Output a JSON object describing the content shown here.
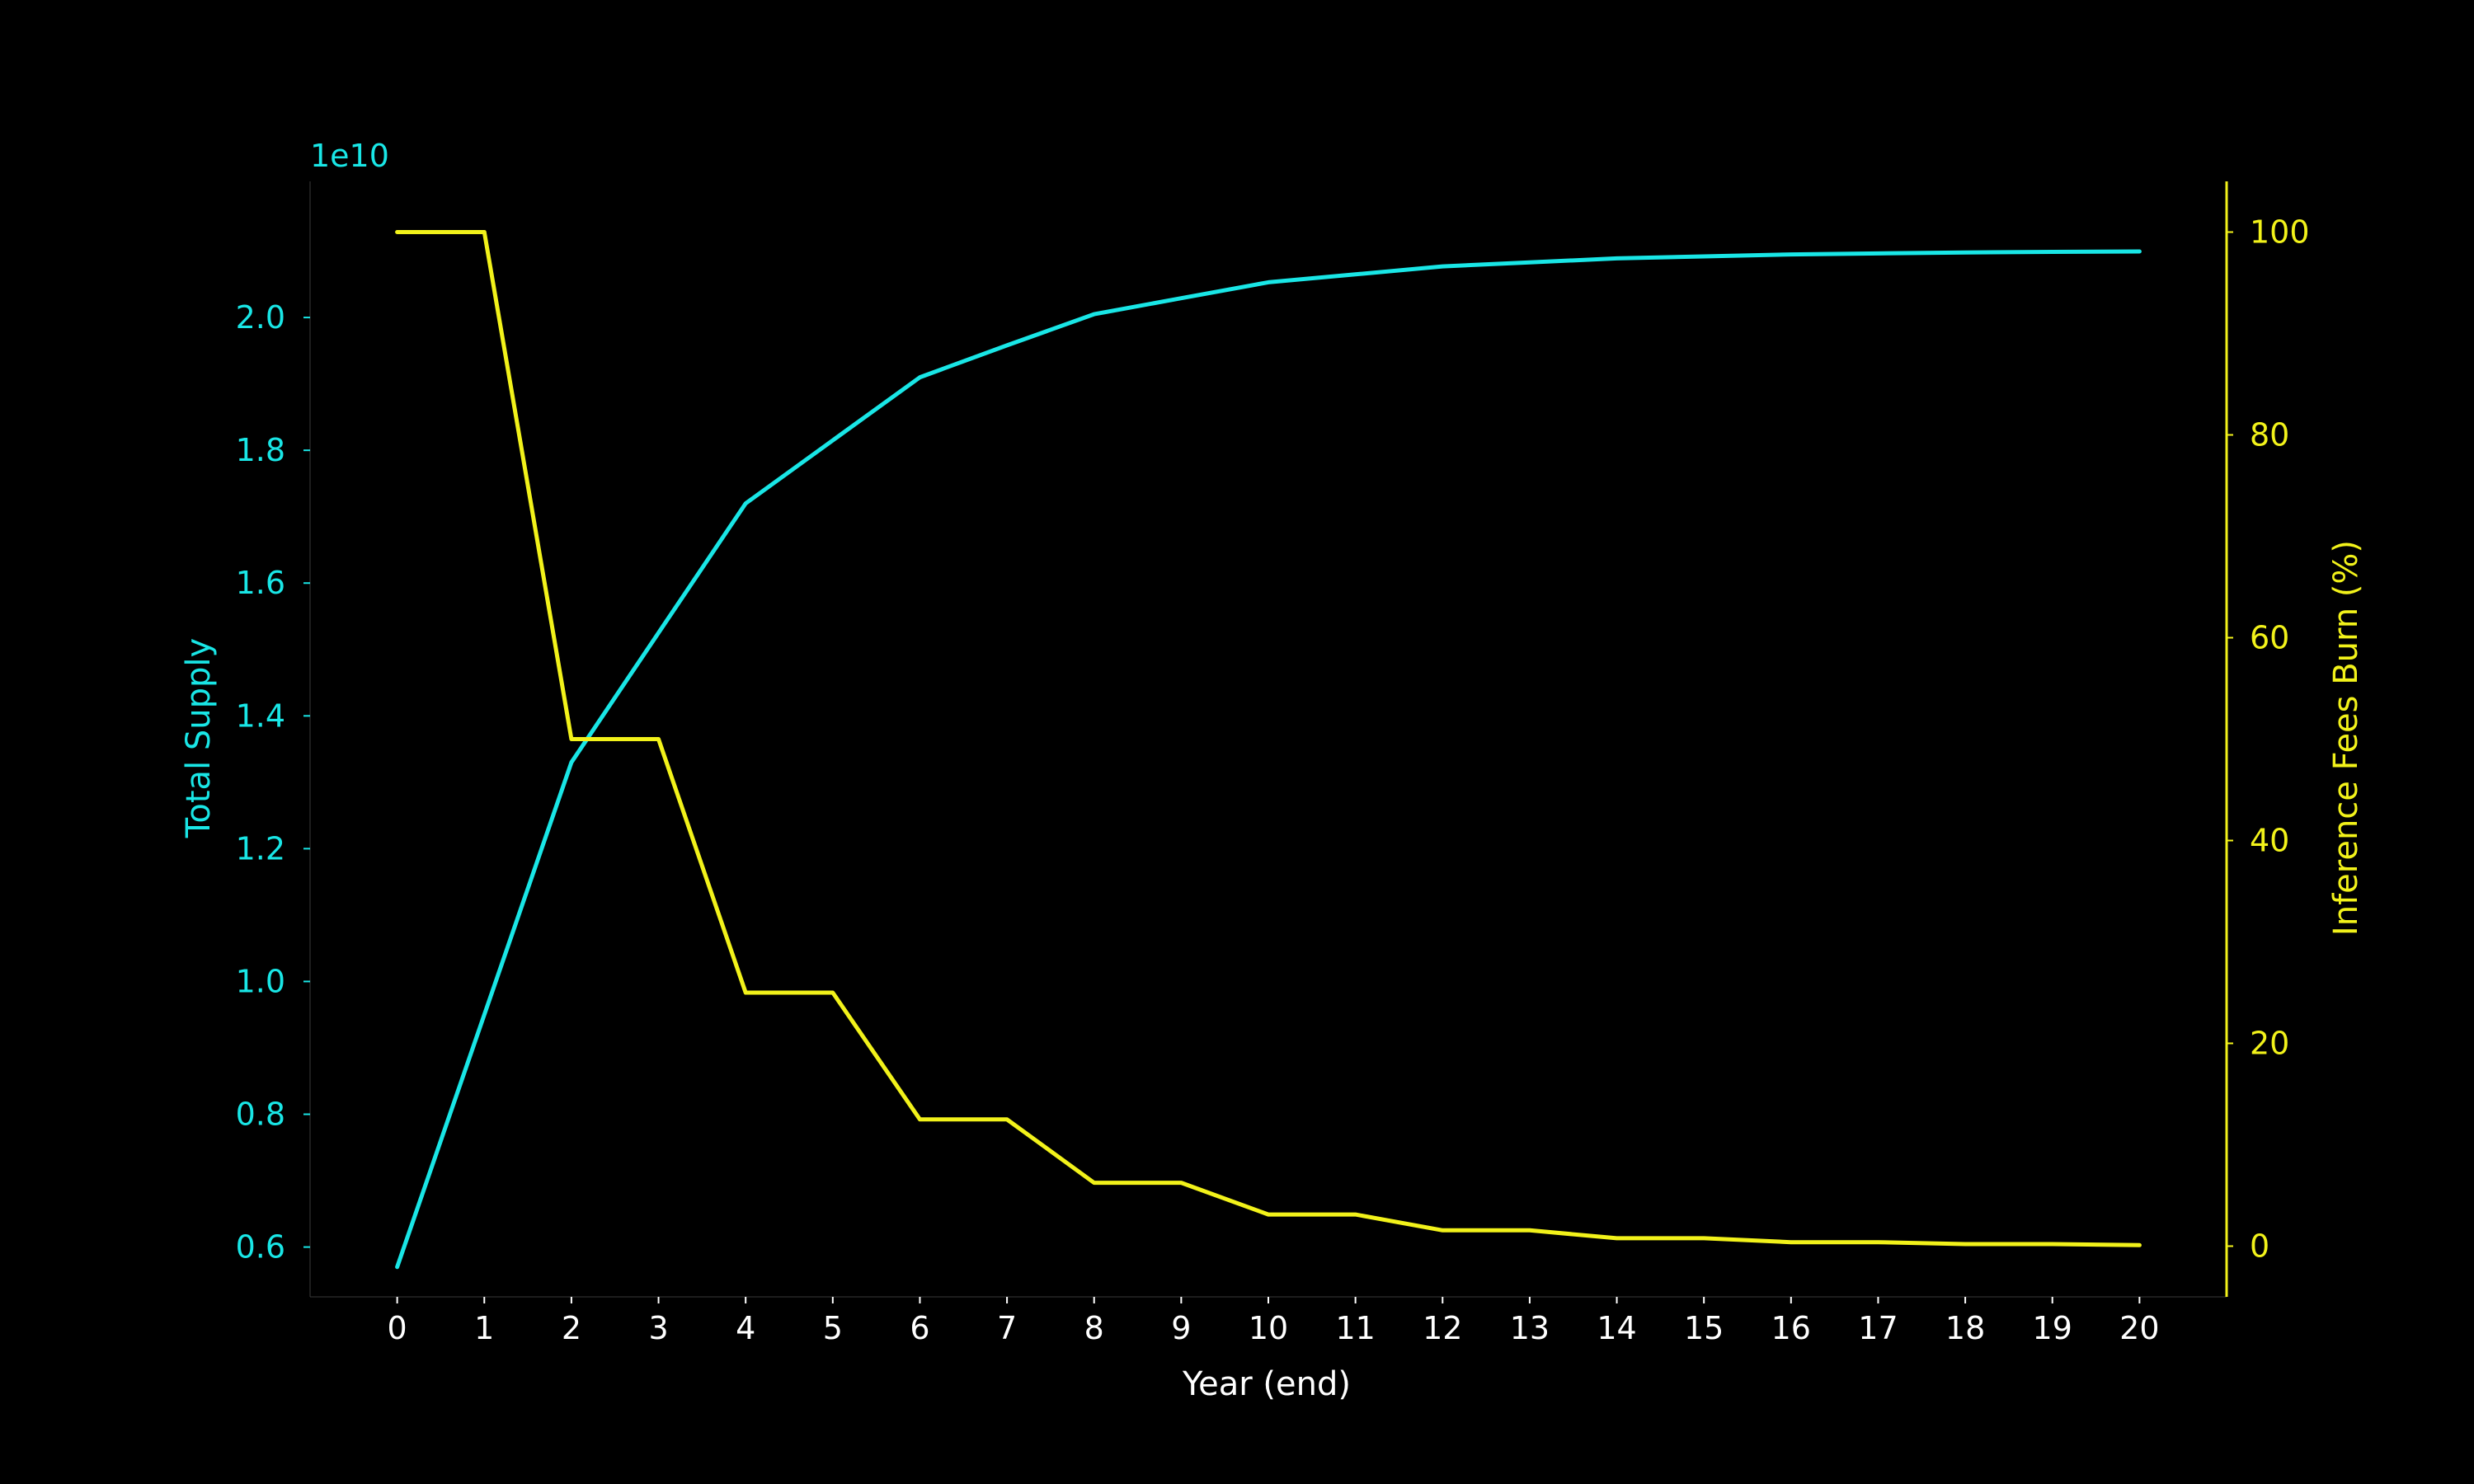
{
  "chart_data": {
    "type": "line",
    "xlabel": "Year (end)",
    "ylabel_left": "Total Supply",
    "ylabel_right": "Inference Fees Burn (%)",
    "left_axis_multiplier": "1e10",
    "x": [
      0,
      1,
      2,
      3,
      4,
      5,
      6,
      7,
      8,
      9,
      10,
      11,
      12,
      13,
      14,
      15,
      16,
      17,
      18,
      19,
      20
    ],
    "x_ticks": [
      "0",
      "1",
      "2",
      "3",
      "4",
      "5",
      "6",
      "7",
      "8",
      "9",
      "10",
      "11",
      "12",
      "13",
      "14",
      "15",
      "16",
      "17",
      "18",
      "19",
      "20"
    ],
    "left_ticks": [
      0.6,
      0.8,
      1.0,
      1.2,
      1.4,
      1.6,
      1.8,
      2.0
    ],
    "left_tick_labels": [
      "0.6",
      "0.8",
      "1.0",
      "1.2",
      "1.4",
      "1.6",
      "1.8",
      "2.0"
    ],
    "right_ticks": [
      0,
      20,
      40,
      60,
      80,
      100
    ],
    "right_tick_labels": [
      "0",
      "20",
      "40",
      "60",
      "80",
      "100"
    ],
    "xlim": [
      -1,
      21
    ],
    "ylim_left": [
      0.525,
      2.205
    ],
    "ylim_right": [
      -5,
      105
    ],
    "grid": false,
    "legend": false,
    "colors": {
      "background": "#000000",
      "left_series": "#19e6e6",
      "right_series": "#f2f21a",
      "x_axis_text": "#ffffff"
    },
    "series": [
      {
        "axis": "left",
        "color": "#19e6e6",
        "values": [
          0.57,
          0.95,
          1.33,
          1.525,
          1.72,
          1.815,
          1.91,
          1.958,
          2.005,
          2.029,
          2.053,
          2.065,
          2.077,
          2.083,
          2.089,
          2.092,
          2.095,
          2.0965,
          2.098,
          2.0988,
          2.0995
        ]
      },
      {
        "axis": "right",
        "color": "#f2f21a",
        "values": [
          100,
          100,
          50,
          50,
          25,
          25,
          12.5,
          12.5,
          6.25,
          6.25,
          3.125,
          3.125,
          1.5625,
          1.5625,
          0.78,
          0.78,
          0.39,
          0.39,
          0.2,
          0.2,
          0.1
        ]
      }
    ]
  }
}
